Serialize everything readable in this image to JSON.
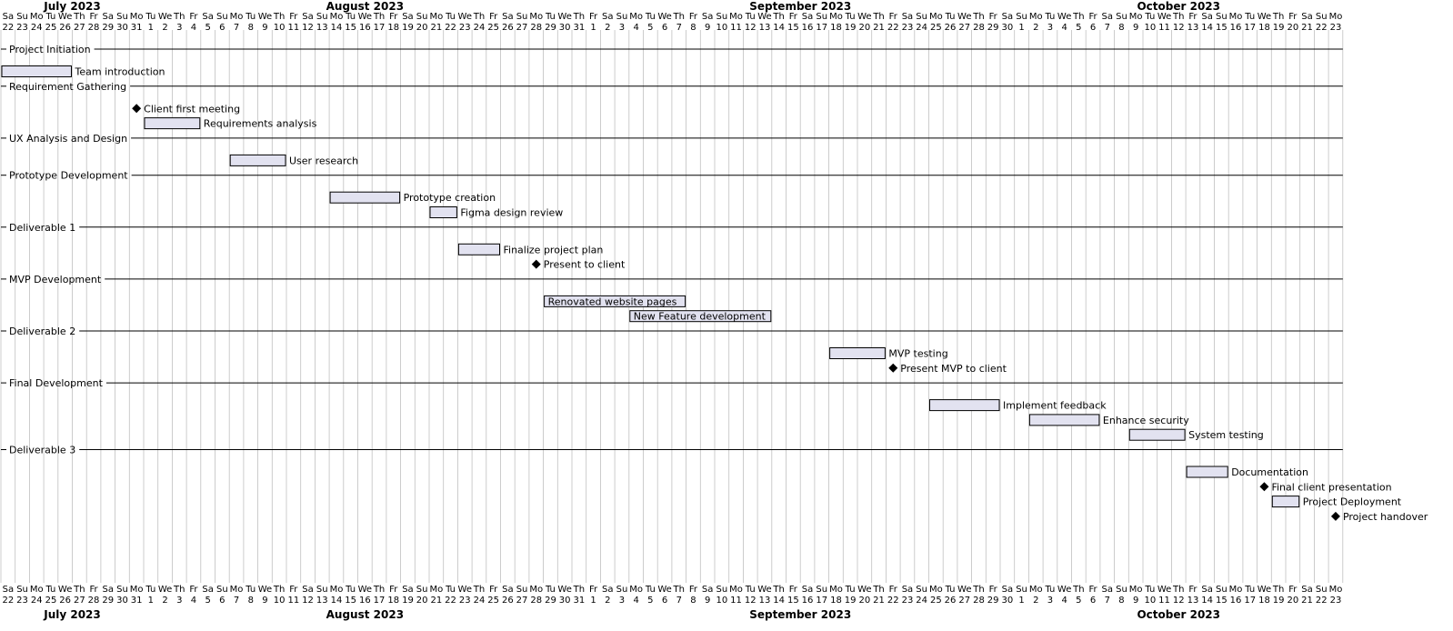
{
  "chart_data": {
    "type": "gantt",
    "start_date": "2023-07-22",
    "end_date": "2023-10-23",
    "months": [
      "July 2023",
      "August 2023",
      "September 2023",
      "October 2023"
    ],
    "day_abbr": [
      "Su",
      "Mo",
      "Tu",
      "We",
      "Th",
      "Fr",
      "Sa"
    ],
    "rows": [
      {
        "kind": "separator",
        "label": "Project Initiation"
      },
      {
        "kind": "task",
        "label": "Team introduction",
        "start": "2023-07-22",
        "end": "2023-07-26"
      },
      {
        "kind": "separator",
        "label": "Requirement Gathering"
      },
      {
        "kind": "milestone",
        "label": "Client first meeting",
        "date": "2023-07-31"
      },
      {
        "kind": "task",
        "label": "Requirements analysis",
        "start": "2023-08-01",
        "end": "2023-08-04"
      },
      {
        "kind": "separator",
        "label": "UX Analysis and Design"
      },
      {
        "kind": "task",
        "label": "User research",
        "start": "2023-08-07",
        "end": "2023-08-10"
      },
      {
        "kind": "separator",
        "label": "Prototype Development"
      },
      {
        "kind": "task",
        "label": "Prototype creation",
        "start": "2023-08-14",
        "end": "2023-08-18"
      },
      {
        "kind": "task",
        "label": "Figma design review",
        "start": "2023-08-21",
        "end": "2023-08-22"
      },
      {
        "kind": "separator",
        "label": "Deliverable 1"
      },
      {
        "kind": "task",
        "label": "Finalize project plan",
        "start": "2023-08-23",
        "end": "2023-08-25"
      },
      {
        "kind": "milestone",
        "label": "Present to client",
        "date": "2023-08-28"
      },
      {
        "kind": "separator",
        "label": "MVP Development"
      },
      {
        "kind": "task",
        "label": "Renovated website pages",
        "start": "2023-08-29",
        "end": "2023-09-07",
        "label_inside": true
      },
      {
        "kind": "task",
        "label": "New Feature development",
        "start": "2023-09-04",
        "end": "2023-09-13",
        "label_inside": true
      },
      {
        "kind": "separator",
        "label": "Deliverable 2"
      },
      {
        "kind": "task",
        "label": "MVP testing",
        "start": "2023-09-18",
        "end": "2023-09-21"
      },
      {
        "kind": "milestone",
        "label": "Present MVP to client",
        "date": "2023-09-22"
      },
      {
        "kind": "separator",
        "label": "Final Development"
      },
      {
        "kind": "task",
        "label": "Implement feedback",
        "start": "2023-09-25",
        "end": "2023-09-29"
      },
      {
        "kind": "task",
        "label": "Enhance security",
        "start": "2023-10-02",
        "end": "2023-10-06"
      },
      {
        "kind": "task",
        "label": "System testing",
        "start": "2023-10-09",
        "end": "2023-10-12"
      },
      {
        "kind": "separator",
        "label": "Deliverable 3"
      },
      {
        "kind": "task",
        "label": "Documentation",
        "start": "2023-10-13",
        "end": "2023-10-15"
      },
      {
        "kind": "milestone",
        "label": "Final client presentation",
        "date": "2023-10-18"
      },
      {
        "kind": "task",
        "label": "Project Deployment",
        "start": "2023-10-19",
        "end": "2023-10-20"
      },
      {
        "kind": "milestone",
        "label": "Project handover",
        "date": "2023-10-23"
      }
    ]
  }
}
